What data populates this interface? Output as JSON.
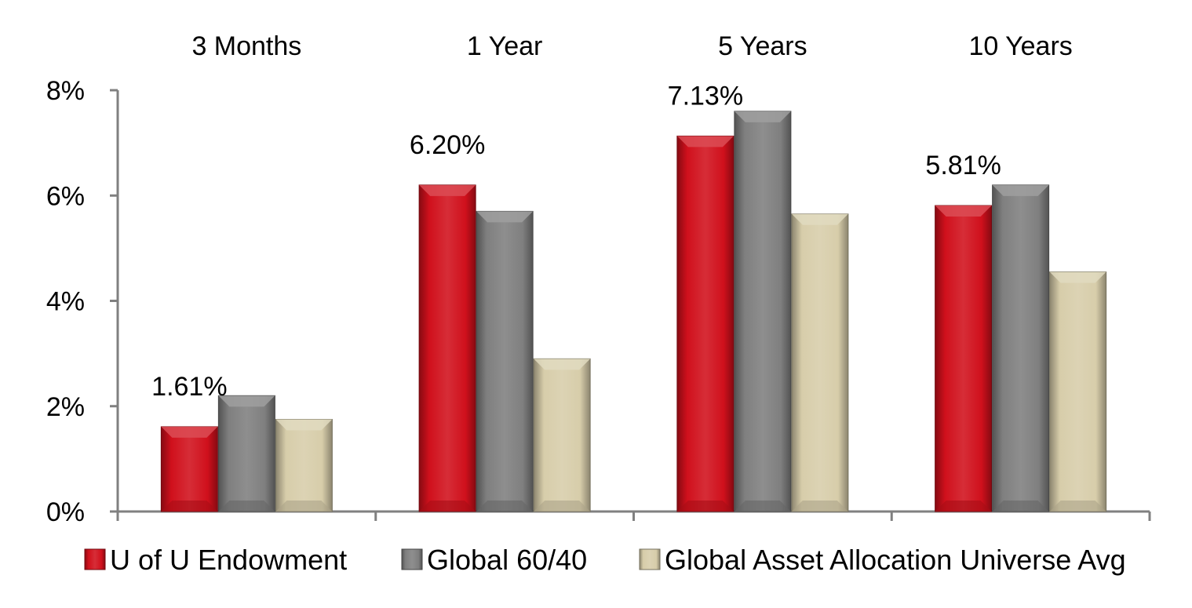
{
  "chart_data": {
    "type": "bar",
    "categories": [
      "3 Months",
      "1 Year",
      "5 Years",
      "10 Years"
    ],
    "series": [
      {
        "name": "U of U Endowment",
        "color": "#d0101c",
        "values": [
          1.61,
          6.2,
          7.13,
          5.81
        ]
      },
      {
        "name": "Global 60/40",
        "color": "#7f7f7f",
        "values": [
          2.2,
          5.7,
          7.6,
          6.2
        ]
      },
      {
        "name": "Global Asset Allocation Universe Avg",
        "color": "#d7cdaa",
        "values": [
          1.75,
          2.9,
          5.65,
          4.55
        ]
      }
    ],
    "data_labels": [
      {
        "category": "3 Months",
        "series": "U of U Endowment",
        "text": "1.61%"
      },
      {
        "category": "1 Year",
        "series": "U of U Endowment",
        "text": "6.20%"
      },
      {
        "category": "5 Years",
        "series": "U of U Endowment",
        "text": "7.13%"
      },
      {
        "category": "10 Years",
        "series": "U of U Endowment",
        "text": "5.81%"
      }
    ],
    "y_ticks": [
      "0%",
      "2%",
      "4%",
      "6%",
      "8%"
    ],
    "ylim": [
      0,
      8
    ],
    "category_position": "top",
    "legend_position": "bottom",
    "grid": false
  }
}
